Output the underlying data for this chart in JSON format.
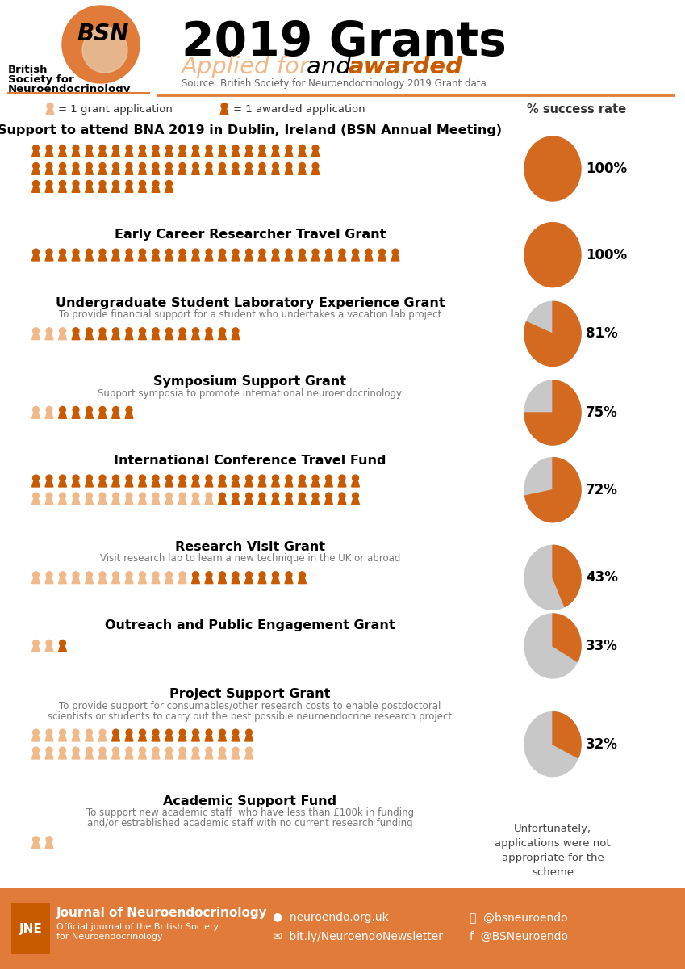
{
  "title": "2019 Grants",
  "subtitle_light": "Applied for ",
  "subtitle_and": "and ",
  "subtitle_dark": "awarded",
  "source": "Source: British Society for Neuroendocrinology 2019 Grant data",
  "orange_light": "#F0B98A",
  "orange_dark": "#C85A00",
  "orange_main": "#E07B39",
  "orange_pie": "#D46A20",
  "gray_pie": "#C8C8C8",
  "grants": [
    {
      "title": "Support to attend BNA 2019 in Dublin, Ireland (BSN Annual Meeting)",
      "subtitle": "",
      "applied": 55,
      "awarded": 55,
      "success": 100,
      "icons_per_row": 22,
      "rows": 3
    },
    {
      "title": "Early Career Researcher Travel Grant",
      "subtitle": "",
      "applied": 28,
      "awarded": 28,
      "success": 100,
      "icons_per_row": 28,
      "rows": 1
    },
    {
      "title": "Undergraduate Student Laboratory Experience Grant",
      "subtitle": "To provide financial support for a student who undertakes a vacation lab project",
      "applied": 16,
      "awarded": 13,
      "success": 81,
      "icons_per_row": 16,
      "rows": 1
    },
    {
      "title": "Symposium Support Grant",
      "subtitle": "Support symposia to promote international neuroendocrinology",
      "applied": 8,
      "awarded": 6,
      "success": 75,
      "icons_per_row": 8,
      "rows": 1
    },
    {
      "title": "International Conference Travel Fund",
      "subtitle": "",
      "applied": 50,
      "awarded": 36,
      "success": 72,
      "icons_per_row": 25,
      "rows": 2
    },
    {
      "title": "Research Visit Grant",
      "subtitle": "Visit research lab to learn a new technique in the UK or abroad",
      "applied": 21,
      "awarded": 9,
      "success": 43,
      "icons_per_row": 21,
      "rows": 1
    },
    {
      "title": "Outreach and Public Engagement Grant",
      "subtitle": "",
      "applied": 3,
      "awarded": 1,
      "success": 33,
      "icons_per_row": 3,
      "rows": 1
    },
    {
      "title": "Project Support Grant",
      "subtitle": "To provide support for consumables/other research costs to enable postdoctoral\nscientists or students to carry out the best possible neuroendocrine research project",
      "applied": 34,
      "awarded": 11,
      "success": 32,
      "icons_per_row": 17,
      "rows": 2
    },
    {
      "title": "Academic Support Fund",
      "subtitle": "To support new academic staff  who have less than £100k in funding\nand/or estrablished academic staff with no current research funding",
      "applied": 2,
      "awarded": 0,
      "success": -1,
      "icons_per_row": 2,
      "rows": 1,
      "no_pie": true,
      "no_pie_text": "Unfortunately,\napplications were not\nappropriate for the\nscheme"
    }
  ]
}
